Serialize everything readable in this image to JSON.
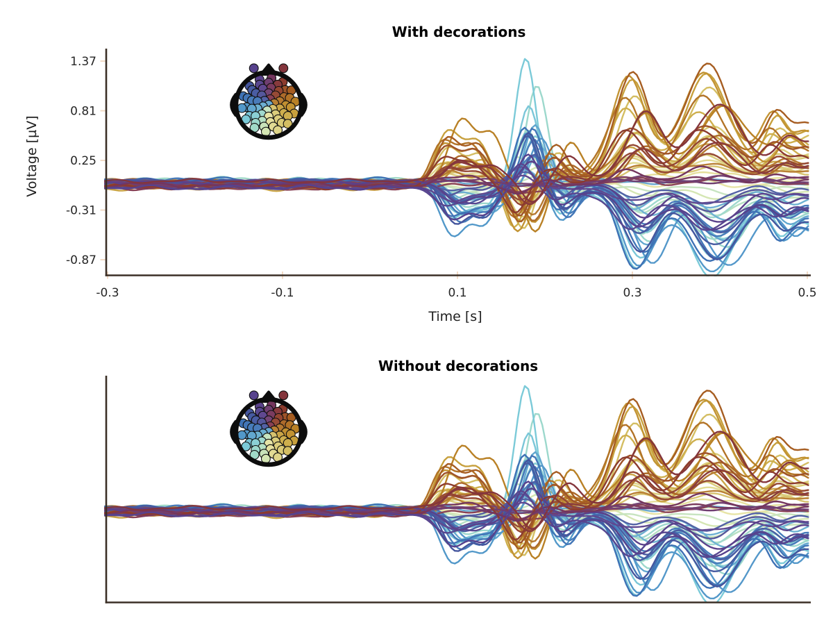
{
  "figure": {
    "background": "#ffffff",
    "spine_color": "#3b2f26",
    "tick_mark_color": "#f2dbc6",
    "text_color": "#262626"
  },
  "chart_data": [
    {
      "type": "line",
      "title": "With decorations",
      "xlabel": "Time [s]",
      "ylabel": "Voltage [µV]",
      "xlim": [
        -0.306,
        0.508
      ],
      "ylim": [
        -1.05,
        1.49
      ],
      "xticks": [
        -0.3,
        -0.1,
        0.1,
        0.3,
        0.5
      ],
      "xtick_labels": [
        "-0.3",
        "-0.1",
        "0.1",
        "0.3",
        "0.5"
      ],
      "yticks": [
        1.37,
        0.81,
        0.25,
        -0.31,
        -0.87
      ],
      "ytick_labels": [
        "1.37",
        "0.81",
        "0.25",
        "-0.31",
        "-0.87"
      ],
      "grid": false,
      "legend": null,
      "decorations": true,
      "n_series": 61,
      "series_source": "eeg_model",
      "inset": "head-topomap"
    },
    {
      "type": "line",
      "title": "Without decorations",
      "xlabel": "",
      "ylabel": "",
      "xlim": [
        -0.306,
        0.508
      ],
      "ylim": [
        -1.05,
        1.49
      ],
      "xticks": [],
      "yticks": [],
      "grid": false,
      "legend": null,
      "decorations": false,
      "n_series": 61,
      "series_source": "eeg_model",
      "inset": "head-topomap"
    }
  ],
  "palette_angles": [
    [
      -180,
      "#e2e8ae"
    ],
    [
      -152,
      "#a6dcc6"
    ],
    [
      -122,
      "#7ac9d8"
    ],
    [
      -95,
      "#4f94c8"
    ],
    [
      -68,
      "#3b6db2"
    ],
    [
      -42,
      "#45519a"
    ],
    [
      -18,
      "#5b3f8a"
    ],
    [
      0,
      "#6d3a6e"
    ],
    [
      14,
      "#7d3048"
    ],
    [
      34,
      "#8e3c2a"
    ],
    [
      58,
      "#a65d20"
    ],
    [
      88,
      "#bc8726"
    ],
    [
      118,
      "#ccab46"
    ],
    [
      148,
      "#dacd7a"
    ],
    [
      180,
      "#e6e2a0"
    ]
  ],
  "head_inset": {
    "rings": [
      [
        0,
        1,
        0
      ],
      [
        0.21,
        6,
        15
      ],
      [
        0.42,
        10,
        0
      ],
      [
        0.62,
        13,
        8
      ],
      [
        0.8,
        15,
        0
      ],
      [
        0.97,
        14,
        6
      ]
    ],
    "outside_sensors": [
      [
        1.42,
        -22
      ],
      [
        1.42,
        22
      ]
    ],
    "ring_color": "#0d0d0d",
    "dot_outline": "#101010",
    "center_color_angle": -100
  },
  "eeg_model": {
    "seed": 42,
    "t_start": -0.303,
    "t_end": 0.503,
    "t_step": 0.004,
    "components": {
      "early_bumps": [
        [
          0.092,
          0.021,
          1.0
        ],
        [
          0.127,
          0.019,
          0.75
        ]
      ],
      "main_peak": [
        0.176,
        0.0165
      ],
      "rebound": [
        0.216,
        0.018
      ],
      "late_lobes": [
        [
          0.303,
          0.026,
          1.0
        ],
        [
          0.389,
          0.034,
          1.03
        ],
        [
          0.468,
          0.018,
          0.5
        ],
        [
          0.505,
          0.022,
          0.38
        ]
      ],
      "sustain_onset": 0.275,
      "response_onset": 0.062
    },
    "forced": {
      "5:9": {
        "Ap": 1.42,
        "Al": 0.85,
        "Ae": 0.36,
        "As": 0.55,
        "off": -0.02,
        "dt": 0.002,
        "Aw": 0.03
      },
      "5:4": {
        "Al": 1.0,
        "Ae": 0.58,
        "Ap": 0.46,
        "As": 0.62,
        "off": 0.01,
        "dt": -0.003
      },
      "4:9": {
        "Ap": 1.02
      }
    }
  }
}
